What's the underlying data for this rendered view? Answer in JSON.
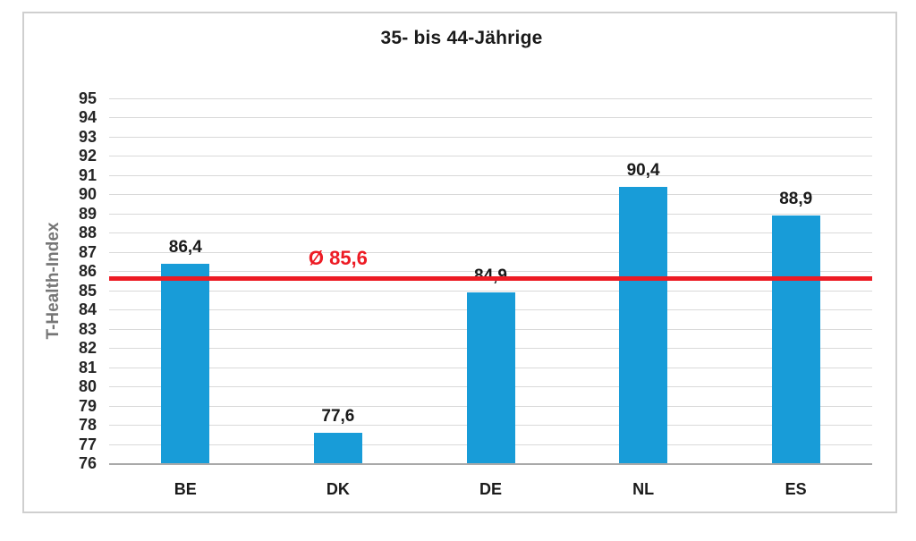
{
  "chart_data": {
    "type": "bar",
    "title": "35- bis 44-Jährige",
    "ylabel": "T-Health-Index",
    "xlabel": "",
    "categories": [
      "BE",
      "DK",
      "DE",
      "NL",
      "ES"
    ],
    "values": [
      86.4,
      77.6,
      84.9,
      90.4,
      88.9
    ],
    "value_labels": [
      "86,4",
      "77,6",
      "84,9",
      "90,4",
      "88,9"
    ],
    "ylim": [
      76,
      95
    ],
    "ytick_step": 1,
    "grid": true,
    "legend_position": "none",
    "average_line": {
      "value": 85.6,
      "label": "Ø 85,6"
    }
  },
  "colors": {
    "bar": "#189cd8",
    "average_line": "#ed1b24",
    "average_label": "#ed1b24",
    "gridline": "#d9d9d9",
    "axis_line": "#a9a9a9",
    "tick_text": "#262626",
    "title_text": "#1a1a1a",
    "y_axis_title_text": "#767676",
    "frame_border": "#cfcfcf",
    "background": "#ffffff"
  }
}
